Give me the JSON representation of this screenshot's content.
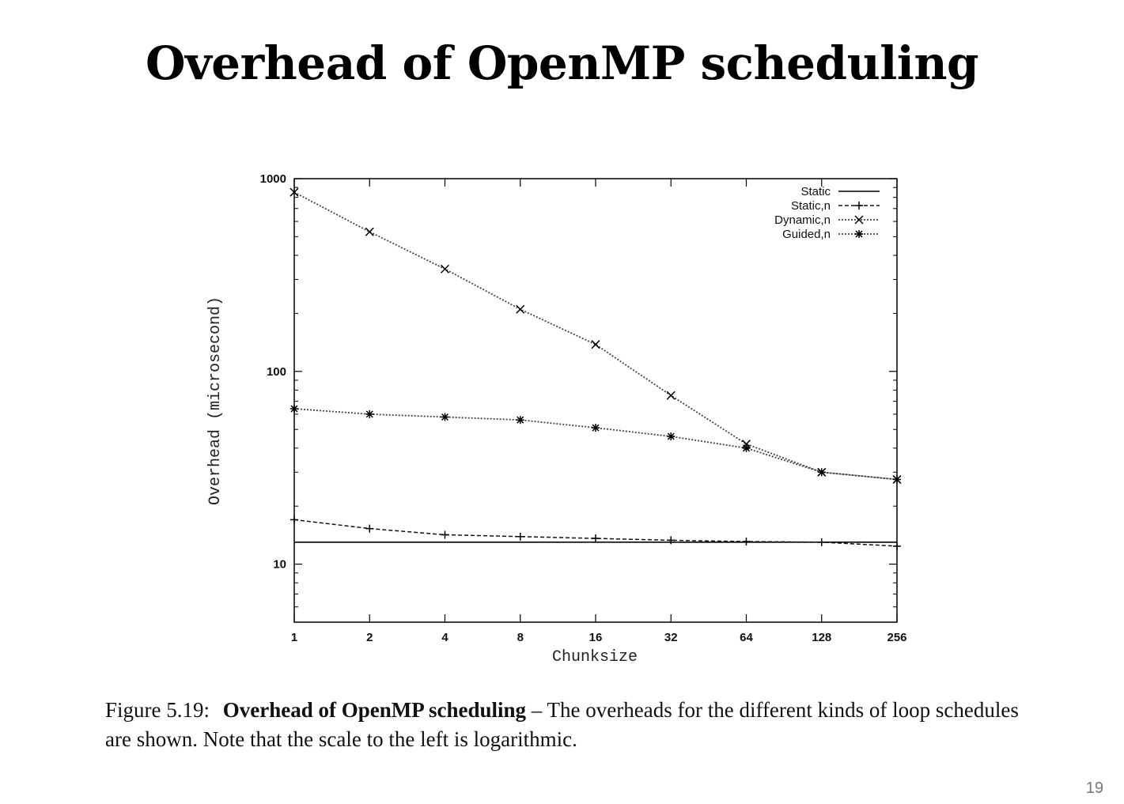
{
  "slide": {
    "title": "Overhead of OpenMP scheduling",
    "page_number": "19"
  },
  "caption": {
    "label": "Figure 5.19:",
    "bold_text": "Overhead of OpenMP scheduling",
    "text": " – The overheads for the different kinds of loop schedules are shown. Note that the scale to the left is logarithmic."
  },
  "chart_data": {
    "type": "line",
    "xlabel": "Chunksize",
    "ylabel": "Overhead (microsecond)",
    "x_scale": "log2",
    "y_scale": "log10",
    "x": [
      1,
      2,
      4,
      8,
      16,
      32,
      64,
      128,
      256
    ],
    "x_tick_labels": [
      "1",
      "2",
      "4",
      "8",
      "16",
      "32",
      "64",
      "128",
      "256"
    ],
    "y_ticks": [
      10,
      100,
      1000
    ],
    "y_tick_labels": [
      "10",
      "100",
      "1000"
    ],
    "xlim": [
      1,
      256
    ],
    "ylim": [
      5,
      1000
    ],
    "grid": false,
    "legend_position": "top-right",
    "series": [
      {
        "name": "Static",
        "style": "solid",
        "marker": "none",
        "values": [
          13,
          13,
          13,
          13,
          13,
          13,
          13,
          13,
          13
        ]
      },
      {
        "name": "Static,n",
        "style": "dashed",
        "marker": "plus",
        "values": [
          17,
          15.3,
          14.2,
          13.9,
          13.6,
          13.3,
          13.1,
          13,
          12.4
        ]
      },
      {
        "name": "Dynamic,n",
        "style": "dotted",
        "marker": "cross",
        "values": [
          850,
          530,
          340,
          210,
          138,
          75,
          42,
          30,
          27.5
        ]
      },
      {
        "name": "Guided,n",
        "style": "dotted",
        "marker": "star",
        "values": [
          64,
          60,
          58,
          56,
          51,
          46,
          40,
          30,
          27.5
        ]
      }
    ]
  }
}
